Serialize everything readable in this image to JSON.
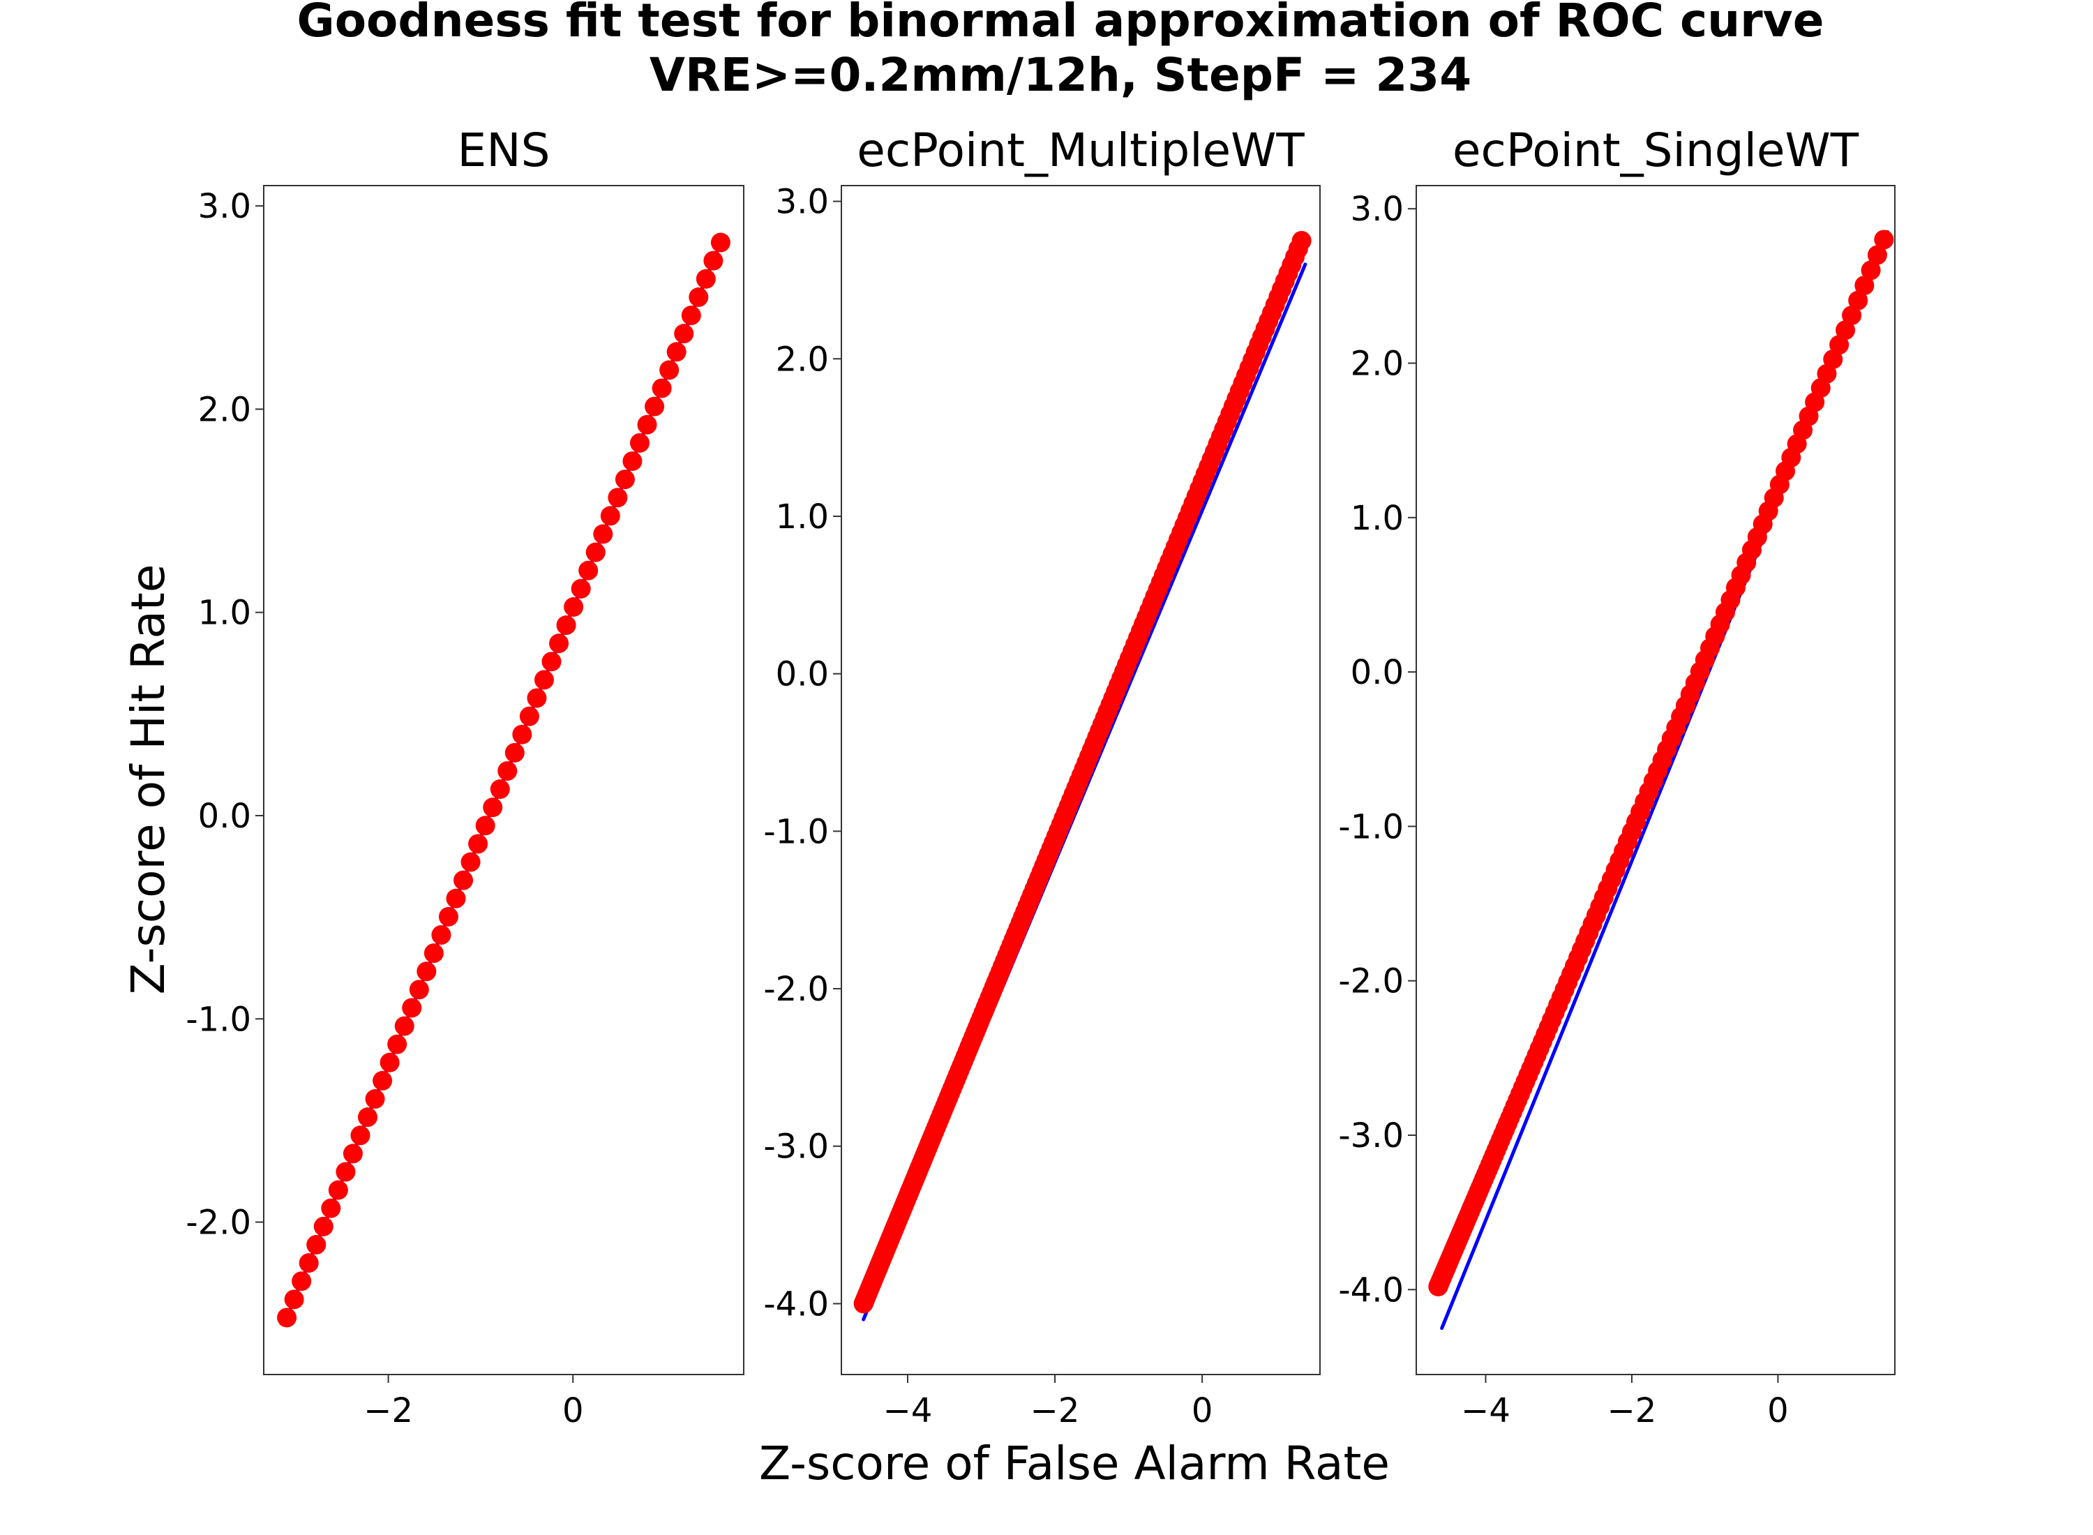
{
  "figure": {
    "title_line1": "Goodness fit test for binormal approximation of ROC curve",
    "title_line2": "VRE>=0.2mm/12h, StepF = 234",
    "xlabel": "Z-score of False Alarm Rate",
    "ylabel": "Z-score of Hit Rate"
  },
  "colors": {
    "points": "#ff0000",
    "fit_line": "#0000ff",
    "frame": "#333333",
    "background": "#ffffff"
  },
  "chart_data": [
    {
      "type": "scatter",
      "title": "ENS",
      "xlim": [
        -3.35,
        1.85
      ],
      "ylim": [
        -2.75,
        3.1
      ],
      "xticks": [
        -2,
        0
      ],
      "xtick_labels": [
        "−2",
        "0"
      ],
      "yticks": [
        -2,
        -1,
        0,
        1,
        2,
        3
      ],
      "ytick_labels": [
        "-2.0",
        "-1.0",
        "0.0",
        "1.0",
        "2.0",
        "3.0"
      ],
      "fit_line": {
        "x": [
          -3.1,
          1.6
        ],
        "y": [
          -2.47,
          2.82
        ]
      },
      "points": {
        "x_start": -3.1,
        "x_end": 1.6,
        "y_start": -2.47,
        "y_end": 2.82,
        "count": 60,
        "gamma": 1.0
      }
    },
    {
      "type": "scatter",
      "title": "ecPoint_MultipleWT",
      "xlim": [
        -4.9,
        1.6
      ],
      "ylim": [
        -4.45,
        3.1
      ],
      "xticks": [
        -4,
        -2,
        0
      ],
      "xtick_labels": [
        "−4",
        "−2",
        "0"
      ],
      "yticks": [
        -4,
        -3,
        -2,
        -1,
        0,
        1,
        2,
        3
      ],
      "ytick_labels": [
        "-4.0",
        "-3.0",
        "-2.0",
        "-1.0",
        "0.0",
        "1.0",
        "2.0",
        "3.0"
      ],
      "fit_line": {
        "x": [
          -4.6,
          1.4
        ],
        "y": [
          -4.1,
          2.6
        ]
      },
      "points": {
        "x_start": -4.6,
        "x_end": 1.35,
        "y_start": -4.0,
        "y_end": 2.75,
        "count": 210,
        "gamma": 1.6
      }
    },
    {
      "type": "scatter",
      "title": "ecPoint_SingleWT",
      "xlim": [
        -4.95,
        1.6
      ],
      "ylim": [
        -4.55,
        3.15
      ],
      "xticks": [
        -4,
        -2,
        0
      ],
      "xtick_labels": [
        "−4",
        "−2",
        "0"
      ],
      "yticks": [
        -4,
        -3,
        -2,
        -1,
        0,
        1,
        2,
        3
      ],
      "ytick_labels": [
        "-4.0",
        "-3.0",
        "-2.0",
        "-1.0",
        "0.0",
        "1.0",
        "2.0",
        "3.0"
      ],
      "fit_line": {
        "x": [
          -4.6,
          1.5
        ],
        "y": [
          -4.25,
          2.85
        ]
      },
      "points": {
        "x_start": -4.65,
        "x_end": 1.45,
        "y_start": -3.98,
        "y_end": 2.8,
        "count": 150,
        "gamma": 2.2
      }
    }
  ]
}
